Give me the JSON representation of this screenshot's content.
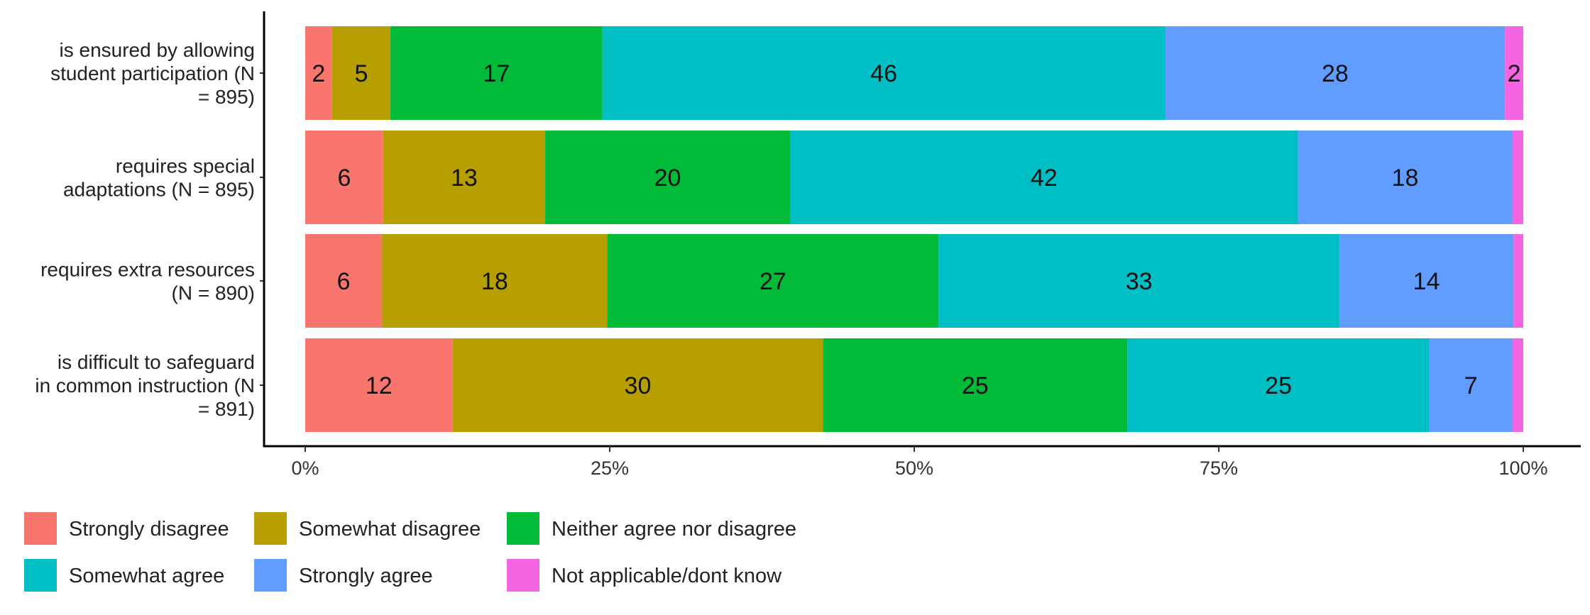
{
  "chart_data": {
    "type": "bar",
    "orientation": "horizontal",
    "stacked": "percent",
    "title": "",
    "xlabel": "",
    "ylabel": "",
    "xlim": [
      0,
      100
    ],
    "x_ticks": [
      "0%",
      "25%",
      "50%",
      "75%",
      "100%"
    ],
    "x_tick_values": [
      0,
      25,
      50,
      75,
      100
    ],
    "categories": [
      [
        "is ensured by allowing",
        "student participation (N",
        "= 895)"
      ],
      [
        "requires special",
        "adaptations (N = 895)"
      ],
      [
        "requires extra resources",
        "(N = 890)"
      ],
      [
        "is difficult to safeguard",
        "in common instruction (N",
        "= 891)"
      ]
    ],
    "series": [
      {
        "name": "Strongly disagree",
        "color": "#F8766D",
        "values": [
          2.2,
          6.4,
          6.3,
          12.1
        ],
        "labels": [
          "2",
          "6",
          "6",
          "12"
        ]
      },
      {
        "name": "Somewhat disagree",
        "color": "#B79F00",
        "values": [
          4.8,
          13.3,
          18.5,
          30.4
        ],
        "labels": [
          "5",
          "13",
          "18",
          "30"
        ]
      },
      {
        "name": "Neither agree nor disagree",
        "color": "#00BA38",
        "values": [
          17.4,
          20.1,
          27.2,
          25.0
        ],
        "labels": [
          "17",
          "20",
          "27",
          "25"
        ]
      },
      {
        "name": "Somewhat agree",
        "color": "#00BFC4",
        "values": [
          46.2,
          41.7,
          32.9,
          24.8
        ],
        "labels": [
          "46",
          "42",
          "33",
          "25"
        ]
      },
      {
        "name": "Strongly agree",
        "color": "#619CFF",
        "values": [
          27.9,
          17.6,
          14.3,
          6.8
        ],
        "labels": [
          "28",
          "18",
          "14",
          "7"
        ]
      },
      {
        "name": "Not applicable/dont know",
        "color": "#F564E3",
        "values": [
          1.5,
          0.9,
          0.8,
          0.9
        ],
        "labels": [
          "2",
          "",
          "",
          ""
        ]
      }
    ],
    "grid": false,
    "legend_position": "bottom-left"
  }
}
